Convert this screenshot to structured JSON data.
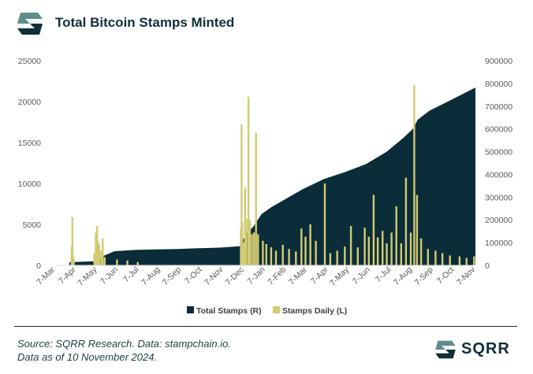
{
  "header": {
    "title": "Total Bitcoin Stamps Minted"
  },
  "footer": {
    "source_line1": "Source: SQRR Research. Data: stampchain.io.",
    "source_line2": "Data as of 10 November 2024.",
    "brand": "SQRR"
  },
  "colors": {
    "total": "#0b2d3a",
    "daily": "#d2cb73",
    "text": "#595959",
    "brand_dark": "#0f2f3a",
    "brand_green": "#5f8f8a"
  },
  "chart_data": {
    "type": "bar",
    "title": "Total Bitcoin Stamps Minted",
    "x_range": [
      "2023-03-07",
      "2024-11-07"
    ],
    "x_ticks": [
      "7-Mar",
      "7-Apr",
      "7-May",
      "7-Jun",
      "7-Jul",
      "7-Aug",
      "7-Sep",
      "7-Oct",
      "7-Nov",
      "7-Dec",
      "7-Jan",
      "7-Feb",
      "7-Mar",
      "7-Apr",
      "7-May",
      "7-Jun",
      "7-Jul",
      "7-Aug",
      "7-Sep",
      "7-Oct",
      "7-Nov"
    ],
    "left_axis": {
      "ylim": [
        0,
        25000
      ],
      "ticks": [
        "0",
        "5000",
        "10000",
        "15000",
        "20000",
        "25000"
      ]
    },
    "right_axis": {
      "ylim": [
        0,
        900000
      ],
      "ticks": [
        "0",
        "100000",
        "200000",
        "300000",
        "400000",
        "500000",
        "600000",
        "700000",
        "800000",
        "900000"
      ]
    },
    "series": [
      {
        "name": "Total Stamps (R)",
        "axis": "right",
        "type": "area",
        "points": [
          [
            "2023-03-07",
            0
          ],
          [
            "2023-03-27",
            0
          ],
          [
            "2023-03-28",
            14000
          ],
          [
            "2023-04-15",
            16000
          ],
          [
            "2023-05-05",
            18000
          ],
          [
            "2023-05-15",
            40000
          ],
          [
            "2023-06-01",
            62000
          ],
          [
            "2023-07-01",
            68000
          ],
          [
            "2023-08-01",
            70000
          ],
          [
            "2023-09-01",
            72000
          ],
          [
            "2023-10-01",
            75000
          ],
          [
            "2023-11-01",
            78000
          ],
          [
            "2023-11-30",
            84000
          ],
          [
            "2023-12-03",
            100000
          ],
          [
            "2023-12-10",
            140000
          ],
          [
            "2023-12-20",
            170000
          ],
          [
            "2024-01-01",
            225000
          ],
          [
            "2024-01-15",
            255000
          ],
          [
            "2024-02-01",
            285000
          ],
          [
            "2024-03-01",
            335000
          ],
          [
            "2024-04-01",
            380000
          ],
          [
            "2024-05-01",
            410000
          ],
          [
            "2024-06-01",
            445000
          ],
          [
            "2024-07-01",
            500000
          ],
          [
            "2024-07-25",
            560000
          ],
          [
            "2024-08-08",
            600000
          ],
          [
            "2024-08-15",
            640000
          ],
          [
            "2024-09-01",
            680000
          ],
          [
            "2024-10-01",
            725000
          ],
          [
            "2024-11-07",
            782000
          ]
        ]
      },
      {
        "name": "Stamps Daily (L)",
        "axis": "left",
        "type": "bar",
        "spikes": [
          [
            "2023-03-31",
            2300
          ],
          [
            "2023-04-01",
            5900
          ],
          [
            "2023-04-02",
            1200
          ],
          [
            "2023-04-03",
            800
          ],
          [
            "2023-05-03",
            1500
          ],
          [
            "2023-05-05",
            4000
          ],
          [
            "2023-05-07",
            4800
          ],
          [
            "2023-05-08",
            3000
          ],
          [
            "2023-05-10",
            2600
          ],
          [
            "2023-05-13",
            1800
          ],
          [
            "2023-05-15",
            3300
          ],
          [
            "2023-05-18",
            1000
          ],
          [
            "2023-06-05",
            700
          ],
          [
            "2023-06-20",
            600
          ],
          [
            "2023-07-05",
            400
          ],
          [
            "2023-12-02",
            4500
          ],
          [
            "2023-12-03",
            17200
          ],
          [
            "2023-12-04",
            5300
          ],
          [
            "2023-12-06",
            2800
          ],
          [
            "2023-12-08",
            9500
          ],
          [
            "2023-12-10",
            5700
          ],
          [
            "2023-12-13",
            20600
          ],
          [
            "2023-12-15",
            5500
          ],
          [
            "2023-12-18",
            3800
          ],
          [
            "2023-12-21",
            4000
          ],
          [
            "2023-12-24",
            16200
          ],
          [
            "2023-12-27",
            3800
          ],
          [
            "2024-01-03",
            3000
          ],
          [
            "2024-01-08",
            2600
          ],
          [
            "2024-01-15",
            2200
          ],
          [
            "2024-01-22",
            1800
          ],
          [
            "2024-02-01",
            2500
          ],
          [
            "2024-02-10",
            2000
          ],
          [
            "2024-02-20",
            1700
          ],
          [
            "2024-02-28",
            4500
          ],
          [
            "2024-03-05",
            3500
          ],
          [
            "2024-03-12",
            5000
          ],
          [
            "2024-03-20",
            3000
          ],
          [
            "2024-04-02",
            10000
          ],
          [
            "2024-04-10",
            1500
          ],
          [
            "2024-04-20",
            1800
          ],
          [
            "2024-05-01",
            2300
          ],
          [
            "2024-05-10",
            4800
          ],
          [
            "2024-05-20",
            2200
          ],
          [
            "2024-05-30",
            4600
          ],
          [
            "2024-06-05",
            3500
          ],
          [
            "2024-06-12",
            8600
          ],
          [
            "2024-06-18",
            3400
          ],
          [
            "2024-06-25",
            4200
          ],
          [
            "2024-07-01",
            2700
          ],
          [
            "2024-07-08",
            4000
          ],
          [
            "2024-07-15",
            7200
          ],
          [
            "2024-07-22",
            2700
          ],
          [
            "2024-07-29",
            10700
          ],
          [
            "2024-08-05",
            4000
          ],
          [
            "2024-08-10",
            22000
          ],
          [
            "2024-08-14",
            8600
          ],
          [
            "2024-08-20",
            3300
          ],
          [
            "2024-08-30",
            2000
          ],
          [
            "2024-09-10",
            1800
          ],
          [
            "2024-09-20",
            1500
          ],
          [
            "2024-10-01",
            1200
          ],
          [
            "2024-10-15",
            1100
          ],
          [
            "2024-10-25",
            900
          ],
          [
            "2024-11-05",
            1100
          ]
        ]
      }
    ],
    "legend": {
      "position": "bottom",
      "entries": [
        "Total Stamps (R)",
        "Stamps Daily (L)"
      ]
    },
    "grid": false
  }
}
